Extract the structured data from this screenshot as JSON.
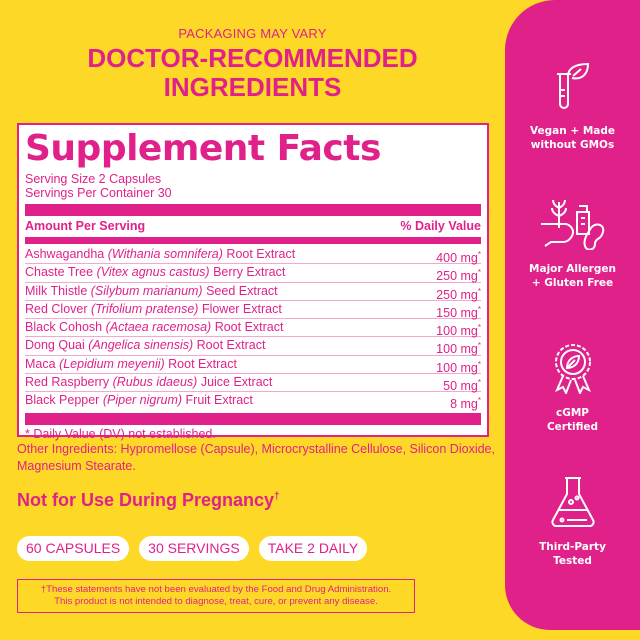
{
  "header": {
    "packaging": "PACKAGING MAY VARY",
    "title_line1": "DOCTOR-RECOMMENDED",
    "title_line2": "INGREDIENTS"
  },
  "facts": {
    "title": "Supplement Facts",
    "serving_size": "Serving Size 2 Capsules",
    "servings_per_container": "Servings Per Container 30",
    "amount_header": "Amount Per Serving",
    "dv_header": "% Daily Value",
    "ingredients": [
      {
        "name": "Ashwagandha",
        "latin": "(Withania somnifera)",
        "part": "Root Extract",
        "amount": "400 mg"
      },
      {
        "name": "Chaste Tree",
        "latin": "(Vitex agnus castus)",
        "part": "Berry Extract",
        "amount": "250 mg"
      },
      {
        "name": "Milk Thistle",
        "latin": "(Silybum marianum)",
        "part": "Seed Extract",
        "amount": "250 mg"
      },
      {
        "name": "Red Clover",
        "latin": "(Trifolium pratense)",
        "part": "Flower Extract",
        "amount": "150 mg"
      },
      {
        "name": "Black Cohosh",
        "latin": "(Actaea racemosa)",
        "part": "Root Extract",
        "amount": "100 mg"
      },
      {
        "name": "Dong Quai",
        "latin": "(Angelica sinensis)",
        "part": "Root Extract",
        "amount": "100 mg"
      },
      {
        "name": "Maca",
        "latin": "(Lepidium meyenii)",
        "part": "Root Extract",
        "amount": "100 mg"
      },
      {
        "name": "Red Raspberry",
        "latin": "(Rubus idaeus)",
        "part": "Juice Extract",
        "amount": "50 mg"
      },
      {
        "name": "Black Pepper",
        "latin": "(Piper nigrum)",
        "part": "Fruit Extract",
        "amount": "8 mg"
      }
    ],
    "star": "*",
    "dv_note": "* Daily Value (DV) not established."
  },
  "other_ingredients": "Other Ingredients: Hypromellose (Capsule), Microcrystalline Cellulose, Silicon Dioxide, Magnesium Stearate.",
  "warning": {
    "text": "Not for Use During Pregnancy",
    "mark": "†"
  },
  "pills": [
    "60 CAPSULES",
    "30 SERVINGS",
    "TAKE 2 DAILY"
  ],
  "disclaimer": {
    "line1": "†These statements have not been evaluated by the Food and Drug Administration.",
    "line2": "This product is not intended to diagnose, treat, cure, or prevent any disease."
  },
  "features": [
    {
      "icon": "plant-test-tube-icon",
      "line1": "Vegan + Made",
      "line2": "without GMOs"
    },
    {
      "icon": "allergen-icon",
      "line1": "Major Allergen",
      "line2": "+ Gluten Free"
    },
    {
      "icon": "certified-badge-icon",
      "line1": "cGMP",
      "line2": "Certified"
    },
    {
      "icon": "flask-icon",
      "line1": "Third-Party",
      "line2": "Tested"
    }
  ],
  "colors": {
    "pink": "#E0218A",
    "yellow": "#FDD826",
    "white": "#FFFFFF"
  }
}
